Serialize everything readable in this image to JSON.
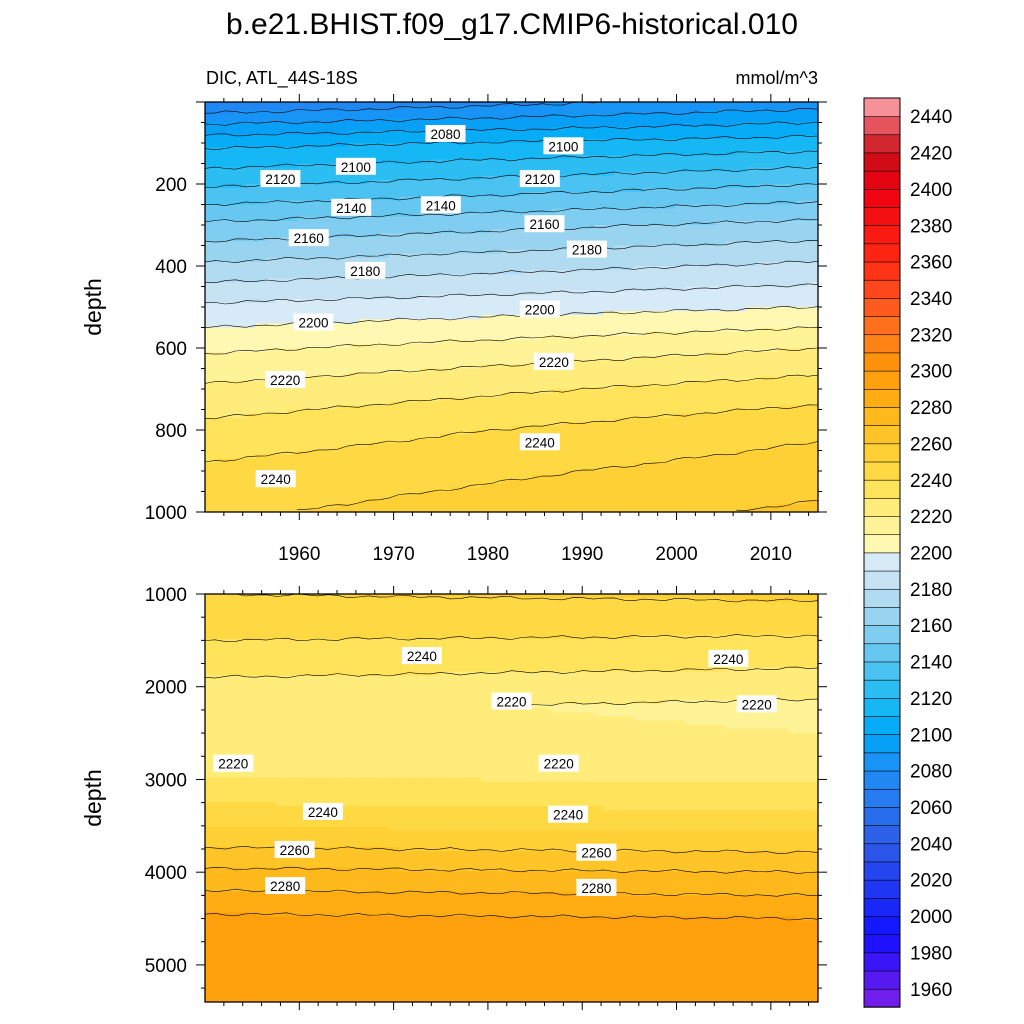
{
  "title": "b.e21.BHIST.f09_g17.CMIP6-historical.010",
  "subtitle_left": "DIC, ATL_44S-18S",
  "subtitle_right": "mmol/m^3",
  "chart_data": {
    "type": "heatmap",
    "colorbar": {
      "min": 1950,
      "max": 2450,
      "step": 10,
      "labels": [
        "1960",
        "1980",
        "2000",
        "2020",
        "2040",
        "2060",
        "2080",
        "2100",
        "2120",
        "2140",
        "2160",
        "2180",
        "2200",
        "2220",
        "2240",
        "2260",
        "2280",
        "2300",
        "2320",
        "2340",
        "2360",
        "2380",
        "2400",
        "2420",
        "2440"
      ]
    },
    "panels": [
      {
        "id": "upper",
        "ylabel": "depth",
        "x_range": [
          1950,
          2015
        ],
        "y_range": [
          0,
          1000
        ],
        "y_inverted": true,
        "x_ticks": [
          "1960",
          "1970",
          "1980",
          "1990",
          "2000",
          "2010"
        ],
        "y_ticks": [
          "200",
          "400",
          "600",
          "800",
          "1000"
        ],
        "profile_depths": [
          0,
          100,
          200,
          300,
          400,
          500,
          600,
          700,
          800,
          900,
          1000
        ],
        "profile_start": [
          2070,
          2107,
          2128,
          2152,
          2172,
          2192,
          2208,
          2222,
          2233,
          2242,
          2248
        ],
        "profile_end": [
          2085,
          2115,
          2140,
          2163,
          2182,
          2200,
          2220,
          2235,
          2248,
          2255,
          2262
        ],
        "contour_labels": [
          {
            "text": "2080",
            "x": 1975.5,
            "y": 78
          },
          {
            "text": "2100",
            "x": 1988.0,
            "y": 108
          },
          {
            "text": "2100",
            "x": 1966.0,
            "y": 158
          },
          {
            "text": "2120",
            "x": 1985.5,
            "y": 188
          },
          {
            "text": "2120",
            "x": 1958.0,
            "y": 188
          },
          {
            "text": "2140",
            "x": 1965.5,
            "y": 258
          },
          {
            "text": "2140",
            "x": 1975.0,
            "y": 252
          },
          {
            "text": "2160",
            "x": 1986.0,
            "y": 298
          },
          {
            "text": "2160",
            "x": 1961.0,
            "y": 332
          },
          {
            "text": "2180",
            "x": 1990.5,
            "y": 360
          },
          {
            "text": "2180",
            "x": 1967.0,
            "y": 412
          },
          {
            "text": "2200",
            "x": 1985.5,
            "y": 506
          },
          {
            "text": "2200",
            "x": 1961.5,
            "y": 538
          },
          {
            "text": "2220",
            "x": 1987.0,
            "y": 634
          },
          {
            "text": "2220",
            "x": 1958.5,
            "y": 678
          },
          {
            "text": "2240",
            "x": 1985.5,
            "y": 830
          },
          {
            "text": "2240",
            "x": 1957.5,
            "y": 920
          }
        ]
      },
      {
        "id": "lower",
        "ylabel": "depth",
        "x_range": [
          1950,
          2015
        ],
        "y_range": [
          1000,
          5400
        ],
        "y_inverted": true,
        "x_ticks": [],
        "y_ticks": [
          "1000",
          "2000",
          "3000",
          "4000",
          "5000"
        ],
        "profile_depths": [
          1000,
          1600,
          2200,
          2800,
          3400,
          4000,
          4500,
          5400
        ],
        "profile_start": [
          2250,
          2238,
          2222,
          2224,
          2245,
          2272,
          2292,
          2295
        ],
        "profile_end": [
          2252,
          2236,
          2218,
          2222,
          2242,
          2270,
          2290,
          2293
        ],
        "contour_labels": [
          {
            "text": "2240",
            "x": 1973.0,
            "y": 1670
          },
          {
            "text": "2240",
            "x": 2005.5,
            "y": 1700
          },
          {
            "text": "2220",
            "x": 1982.5,
            "y": 2160
          },
          {
            "text": "2220",
            "x": 2008.5,
            "y": 2190
          },
          {
            "text": "2220",
            "x": 1953.0,
            "y": 2830
          },
          {
            "text": "2220",
            "x": 1987.5,
            "y": 2830
          },
          {
            "text": "2240",
            "x": 1962.5,
            "y": 3350
          },
          {
            "text": "2240",
            "x": 1988.5,
            "y": 3380
          },
          {
            "text": "2260",
            "x": 1959.5,
            "y": 3760
          },
          {
            "text": "2260",
            "x": 1991.5,
            "y": 3790
          },
          {
            "text": "2280",
            "x": 1958.5,
            "y": 4150
          },
          {
            "text": "2280",
            "x": 1991.5,
            "y": 4170
          }
        ]
      }
    ]
  }
}
